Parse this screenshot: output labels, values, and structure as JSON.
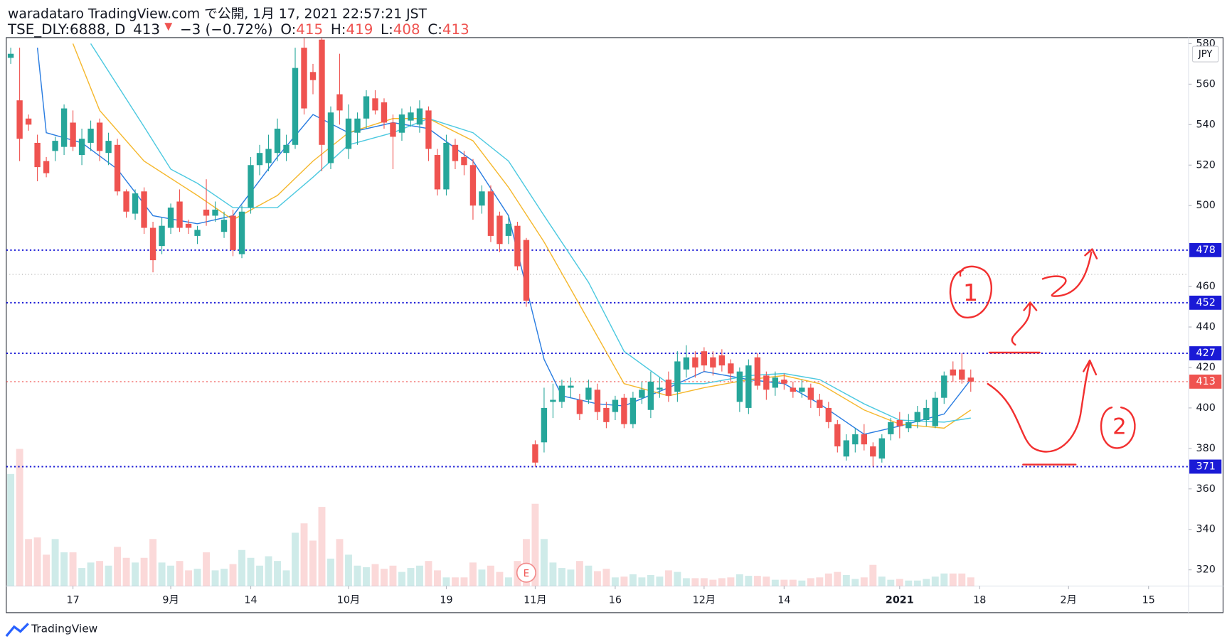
{
  "header": {
    "published": "waradataro TradingView.com で公開, 1月 17, 2021 22:57:21 JST",
    "symbol": "TSE_DLY:6888, D",
    "last": 413,
    "arrow": "▼",
    "change": "−3 (−0.72%)",
    "ohlc": [
      {
        "label": "O:",
        "value": 415
      },
      {
        "label": "H:",
        "value": 419
      },
      {
        "label": "L:",
        "value": 408
      },
      {
        "label": "C:",
        "value": 413
      }
    ]
  },
  "footer": {
    "brand": "TradingView"
  },
  "chart_data": {
    "type": "candlestick",
    "currency": "JPY",
    "colors": {
      "up": "#26a69a",
      "down": "#ef5350"
    },
    "xlim": [
      -0.5,
      132.5
    ],
    "ylim": [
      312,
      583
    ],
    "yticks": [
      580,
      560,
      540,
      520,
      500,
      460,
      440,
      420,
      400,
      380,
      360,
      340,
      320
    ],
    "xticks": [
      {
        "value": 7,
        "label": "17"
      },
      {
        "value": 18,
        "label": "9月"
      },
      {
        "value": 27,
        "label": "14"
      },
      {
        "value": 38,
        "label": "10月"
      },
      {
        "value": 49,
        "label": "19"
      },
      {
        "value": 59,
        "label": "11月"
      },
      {
        "value": 68,
        "label": "16"
      },
      {
        "value": 78,
        "label": "12月"
      },
      {
        "value": 87,
        "label": "14"
      },
      {
        "value": 100,
        "label": "2021"
      },
      {
        "value": 109,
        "label": "18"
      },
      {
        "value": 119,
        "label": "2月"
      },
      {
        "value": 128,
        "label": "15"
      }
    ],
    "open": [
      573,
      552,
      543,
      531,
      522,
      527,
      529,
      541,
      525,
      531,
      541,
      526,
      530,
      507,
      496,
      507,
      489,
      480,
      489,
      502,
      491,
      485,
      498,
      495,
      487,
      495,
      476,
      499,
      520,
      521,
      526,
      526,
      530,
      578,
      566,
      582,
      521,
      555,
      528,
      536,
      543,
      553,
      551,
      541,
      536,
      542,
      540,
      547,
      525,
      508,
      530,
      524,
      520,
      500,
      507,
      495,
      485,
      490,
      483,
      382,
      383,
      403,
      403,
      410,
      404,
      404,
      409,
      400,
      398,
      405,
      392,
      405,
      399,
      409,
      414,
      408,
      419,
      425,
      428,
      425,
      426,
      422,
      403,
      400,
      425,
      416,
      410,
      414,
      410,
      408,
      410,
      404,
      400,
      392,
      376,
      382,
      387,
      381,
      375,
      387,
      394,
      390,
      393,
      394,
      391,
      405,
      419,
      419,
      415
    ],
    "high": [
      578,
      578,
      545,
      535,
      524,
      534,
      550,
      547,
      538,
      542,
      543,
      536,
      533,
      508,
      508,
      509,
      492,
      494,
      501,
      508,
      493,
      490,
      513,
      502,
      497,
      498,
      500,
      524,
      530,
      535,
      543,
      535,
      578,
      583,
      570,
      583,
      549,
      575,
      550,
      546,
      557,
      557,
      553,
      545,
      548,
      549,
      552,
      549,
      528,
      535,
      533,
      527,
      523,
      510,
      510,
      497,
      495,
      492,
      484,
      384,
      410,
      412,
      414,
      415,
      407,
      414,
      412,
      403,
      406,
      407,
      408,
      413,
      418,
      415,
      418,
      428,
      431,
      428,
      430,
      428,
      429,
      424,
      420,
      424,
      427,
      418,
      418,
      417,
      413,
      414,
      412,
      407,
      403,
      394,
      387,
      390,
      392,
      383,
      387,
      395,
      398,
      397,
      401,
      404,
      408,
      418,
      423,
      427,
      419
    ],
    "low": [
      570,
      522,
      537,
      512,
      514,
      522,
      525,
      527,
      520,
      527,
      522,
      520,
      505,
      494,
      493,
      486,
      467,
      476,
      486,
      487,
      486,
      481,
      490,
      492,
      484,
      475,
      474,
      496,
      515,
      517,
      522,
      522,
      528,
      545,
      555,
      517,
      518,
      540,
      523,
      530,
      538,
      545,
      538,
      518,
      532,
      539,
      536,
      522,
      505,
      505,
      518,
      515,
      493,
      496,
      482,
      477,
      481,
      468,
      450,
      371,
      378,
      395,
      400,
      405,
      394,
      402,
      394,
      390,
      394,
      390,
      390,
      402,
      395,
      405,
      403,
      403,
      415,
      415,
      418,
      416,
      418,
      413,
      398,
      397,
      409,
      404,
      406,
      409,
      405,
      405,
      400,
      396,
      390,
      378,
      374,
      378,
      379,
      371,
      373,
      384,
      385,
      388,
      390,
      391,
      390,
      402,
      413,
      412,
      408
    ],
    "close": [
      575,
      533,
      540,
      519,
      516,
      532,
      548,
      529,
      533,
      538,
      527,
      532,
      507,
      497,
      506,
      489,
      473,
      490,
      499,
      489,
      489,
      488,
      495,
      498,
      493,
      478,
      497,
      520,
      526,
      528,
      538,
      530,
      568,
      548,
      562,
      530,
      546,
      547,
      543,
      543,
      554,
      547,
      541,
      534,
      545,
      546,
      548,
      528,
      508,
      531,
      522,
      520,
      500,
      507,
      485,
      481,
      491,
      470,
      453,
      373,
      400,
      404,
      411,
      411,
      397,
      410,
      398,
      393,
      404,
      392,
      405,
      409,
      413,
      410,
      406,
      423,
      425,
      420,
      421,
      420,
      421,
      417,
      418,
      421,
      411,
      409,
      415,
      412,
      408,
      410,
      404,
      400,
      393,
      381,
      384,
      387,
      382,
      376,
      385,
      393,
      391,
      393,
      398,
      400,
      405,
      416,
      416,
      414,
      413
    ],
    "volume": [
      143,
      175,
      60,
      62,
      40,
      60,
      43,
      43,
      23,
      30,
      32,
      26,
      50,
      36,
      30,
      36,
      60,
      30,
      26,
      32,
      20,
      22,
      43,
      20,
      22,
      28,
      46,
      36,
      26,
      38,
      32,
      20,
      68,
      80,
      58,
      101,
      35,
      60,
      40,
      26,
      24,
      28,
      22,
      26,
      18,
      23,
      26,
      32,
      20,
      11,
      11,
      11,
      30,
      21,
      26,
      18,
      11,
      32,
      60,
      105,
      60,
      30,
      23,
      21,
      32,
      26,
      19,
      22,
      11,
      12,
      15,
      11,
      14,
      12,
      20,
      18,
      10,
      10,
      10,
      8,
      10,
      11,
      15,
      13,
      13,
      12,
      8,
      8,
      8,
      7,
      10,
      11,
      16,
      18,
      14,
      9,
      11,
      27,
      12,
      8,
      9,
      7,
      7,
      9,
      12,
      16,
      16,
      16,
      11
    ],
    "series": [
      {
        "color": "#2a7de1",
        "x": [
          3,
          4,
          8,
          12,
          16,
          21,
          25,
          30,
          34,
          38,
          43,
          47,
          52,
          56,
          60,
          62,
          66,
          69,
          74,
          78,
          83,
          87,
          91,
          96,
          100,
          105,
          108
        ],
        "values": [
          578,
          536,
          531,
          518,
          495,
          491,
          495,
          524,
          545,
          536,
          541,
          538,
          522,
          495,
          424,
          406,
          402,
          401,
          410,
          418,
          414,
          412,
          402,
          387,
          391,
          397,
          414
        ]
      },
      {
        "color": "#f5b82e",
        "x": [
          7,
          10,
          15,
          21,
          25,
          30,
          34,
          38,
          43,
          47,
          52,
          56,
          60,
          64,
          69,
          74,
          78,
          83,
          87,
          91,
          96,
          100,
          105,
          108
        ],
        "values": [
          580,
          547,
          522,
          505,
          493,
          505,
          522,
          536,
          543,
          543,
          532,
          509,
          482,
          451,
          412,
          406,
          410,
          414,
          416,
          412,
          399,
          392,
          390,
          399
        ]
      },
      {
        "color": "#4dc9e0",
        "x": [
          9,
          15,
          18,
          21,
          25,
          30,
          34,
          38,
          43,
          47,
          52,
          56,
          60,
          65,
          69,
          74,
          78,
          83,
          87,
          91,
          96,
          100,
          105,
          108
        ],
        "values": [
          580,
          539,
          518,
          511,
          499,
          499,
          514,
          530,
          536,
          543,
          536,
          522,
          495,
          462,
          428,
          412,
          412,
          416,
          417,
          414,
          402,
          394,
          393,
          395
        ]
      }
    ],
    "price_lines": [
      {
        "value": 478,
        "color": "#1a1ad6"
      },
      {
        "value": 452,
        "color": "#1a1ad6"
      },
      {
        "value": 427,
        "color": "#1a1ad6"
      },
      {
        "value": 371,
        "color": "#1a1ad6"
      },
      {
        "value": 413,
        "color": "#ef5350"
      }
    ],
    "reference_lines": [
      {
        "value": 466,
        "color": "#9e9e9e"
      }
    ],
    "earnings": {
      "index": 58,
      "label": "E"
    },
    "annotations": [
      "1",
      "2"
    ]
  }
}
